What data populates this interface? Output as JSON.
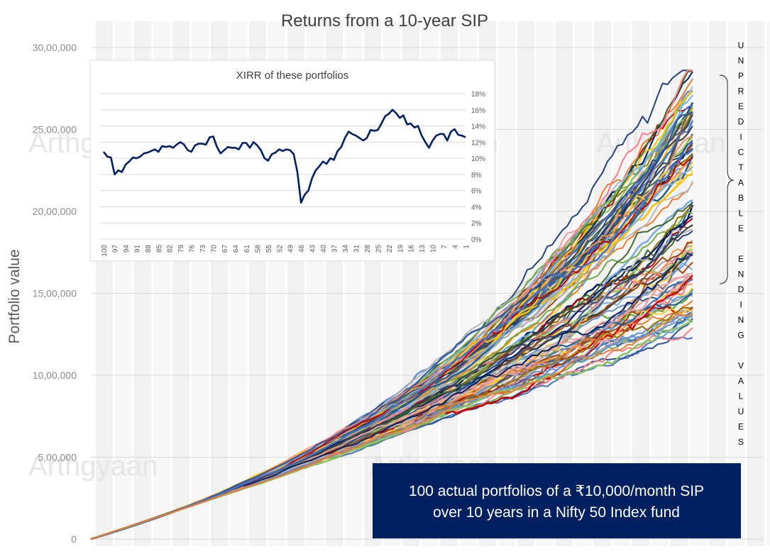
{
  "chart_data": [
    {
      "type": "line",
      "title": "Returns from a 10-year SIP",
      "ylabel": "Portfolio value",
      "xlabel": "",
      "ylim": [
        0,
        3000000
      ],
      "yticks": [
        {
          "value": 0,
          "label": "0"
        },
        {
          "value": 500000,
          "label": "5,00,000"
        },
        {
          "value": 1000000,
          "label": "10,00,000"
        },
        {
          "value": 1500000,
          "label": "15,00,000"
        },
        {
          "value": 2000000,
          "label": "20,00,000"
        },
        {
          "value": 2500000,
          "label": "25,00,000"
        },
        {
          "value": 3000000,
          "label": "30,00,000"
        }
      ],
      "months": 120,
      "series_count": 100,
      "series_end_value_range": [
        1320000,
        2840000
      ],
      "x_tick_labels": "none",
      "grid": "horizontal",
      "legend": "none",
      "annotation_right": "UNPREDICTABLE ENDING VALUES",
      "note_box": {
        "line1": "100 actual portfolios of a ₹10,000/month SIP",
        "line2": "over 10 years in a Nifty 50 Index fund"
      },
      "watermark": "Arthgyaan",
      "line_palette": [
        "#002060",
        "#c00000",
        "#4472c4",
        "#ed7d31",
        "#a5a5a5",
        "#ffc000",
        "#5b9bd5",
        "#70ad47",
        "#264478",
        "#9e480e",
        "#636363",
        "#997300",
        "#255e91",
        "#43682b",
        "#698ed0",
        "#f1975a",
        "#b7b7b7",
        "#ffcd33",
        "#7cafdd",
        "#8cc168",
        "#ff7c80",
        "#3d3d3d",
        "#e8a0a0",
        "#2f5597"
      ]
    },
    {
      "type": "line",
      "title": "XIRR of these portfolios",
      "xlabel": "",
      "ylabel": "",
      "ylim": [
        0,
        18
      ],
      "yaxis_side": "right",
      "yticks": [
        "0%",
        "2%",
        "4%",
        "6%",
        "8%",
        "10%",
        "12%",
        "14%",
        "16%",
        "18%"
      ],
      "x_tick_labels": [
        "100",
        "97",
        "94",
        "91",
        "88",
        "85",
        "82",
        "79",
        "76",
        "73",
        "70",
        "67",
        "64",
        "61",
        "58",
        "55",
        "52",
        "49",
        "46",
        "43",
        "40",
        "37",
        "34",
        "31",
        "28",
        "25",
        "22",
        "19",
        "16",
        "13",
        "10",
        "7",
        "4",
        "1"
      ],
      "x": [
        100,
        99,
        98,
        97,
        96,
        95,
        94,
        93,
        92,
        91,
        90,
        89,
        88,
        87,
        86,
        85,
        84,
        83,
        82,
        81,
        80,
        79,
        78,
        77,
        76,
        75,
        74,
        73,
        72,
        71,
        70,
        69,
        68,
        67,
        66,
        65,
        64,
        63,
        62,
        61,
        60,
        59,
        58,
        57,
        56,
        55,
        54,
        53,
        52,
        51,
        50,
        49,
        48,
        47,
        46,
        45,
        44,
        43,
        42,
        41,
        40,
        39,
        38,
        37,
        36,
        35,
        34,
        33,
        32,
        31,
        30,
        29,
        28,
        27,
        26,
        25,
        24,
        23,
        22,
        21,
        20,
        19,
        18,
        17,
        16,
        15,
        14,
        13,
        12,
        11,
        10,
        9,
        8,
        7,
        6,
        5,
        4,
        3,
        2,
        1
      ],
      "values": [
        10.8,
        10.2,
        10.1,
        8.0,
        8.5,
        8.3,
        9.2,
        9.6,
        10.1,
        10.0,
        10.2,
        10.6,
        10.7,
        10.9,
        11.1,
        10.8,
        11.5,
        11.4,
        11.5,
        11.3,
        11.7,
        12.0,
        11.7,
        11.0,
        10.8,
        11.6,
        11.8,
        11.8,
        11.7,
        12.6,
        12.7,
        11.4,
        10.6,
        11.0,
        11.4,
        11.3,
        11.3,
        11.1,
        11.9,
        11.9,
        11.3,
        12.0,
        11.6,
        11.0,
        10.0,
        9.7,
        10.5,
        10.7,
        11.1,
        10.9,
        11.1,
        11.0,
        10.5,
        8.3,
        4.5,
        5.5,
        6.0,
        7.5,
        8.5,
        9.0,
        9.6,
        9.3,
        10.0,
        9.8,
        10.9,
        11.4,
        12.5,
        13.3,
        13.0,
        12.8,
        12.5,
        12.2,
        12.5,
        13.5,
        13.4,
        13.5,
        14.3,
        15.2,
        15.5,
        16.0,
        15.6,
        15.0,
        15.3,
        14.2,
        14.3,
        13.8,
        14.0,
        12.8,
        12.0,
        11.3,
        12.2,
        12.8,
        13.0,
        13.0,
        12.2,
        13.3,
        13.6,
        12.9,
        12.8,
        12.6
      ],
      "legend": "none",
      "grid": "horizontal"
    }
  ]
}
